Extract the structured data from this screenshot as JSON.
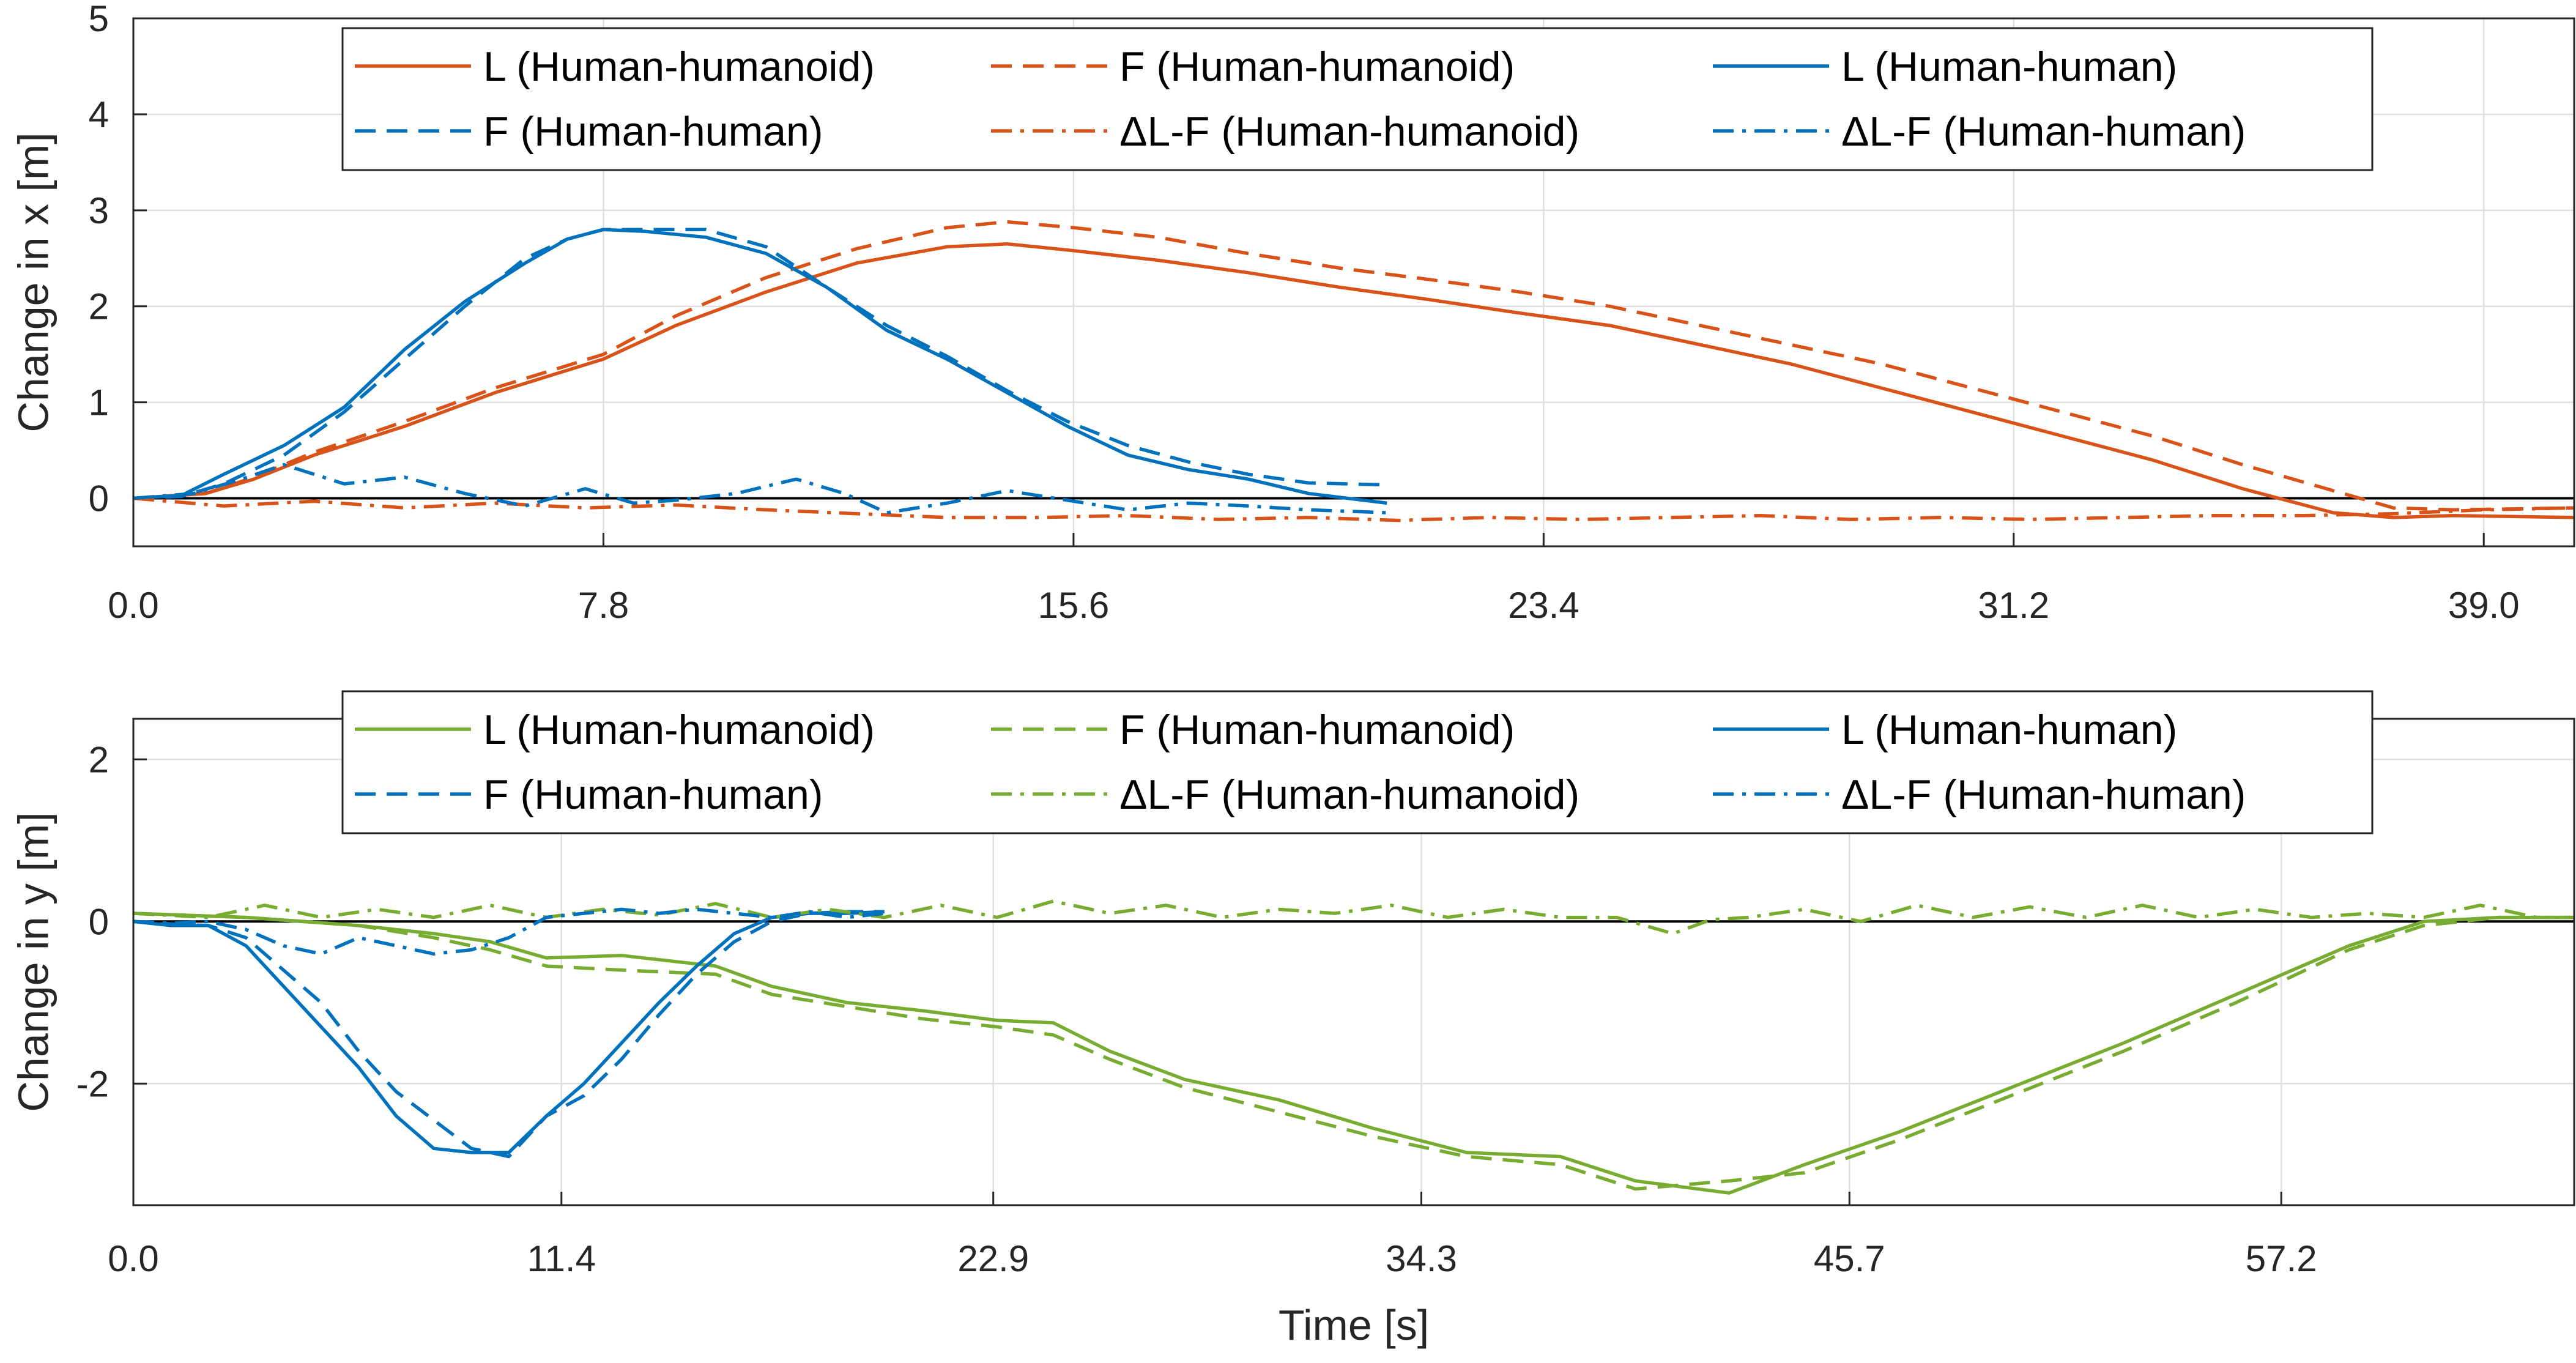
{
  "colors": {
    "humanoid_x": "#D95319",
    "humanoid_y": "#77AC30",
    "human": "#0072BD",
    "zero": "#000000",
    "grid": "#dfdfdf"
  },
  "xlabel": "Time [s]",
  "chart_data": [
    {
      "type": "line",
      "ylabel": "Change in x [m]",
      "xlim": [
        0,
        40.5
      ],
      "ylim": [
        -0.5,
        5
      ],
      "xticks": [
        "0.0",
        "7.8",
        "15.6",
        "23.4",
        "31.2",
        "39.0"
      ],
      "yticks": [
        "0",
        "1",
        "2",
        "3",
        "4",
        "5"
      ],
      "grid": true,
      "legend_position": "top-right",
      "legend_columns": 3,
      "reference_line_y": 0,
      "series": [
        {
          "name": "L (Human-humanoid)",
          "style": "solid",
          "color": "#D95319",
          "x": [
            0,
            1.2,
            2,
            3,
            4.5,
            6,
            7.8,
            9,
            10.5,
            12,
            13.5,
            14.5,
            15.6,
            17,
            18.5,
            20,
            21.5,
            23,
            24.5,
            26,
            27.5,
            29,
            30.5,
            32,
            33.5,
            35,
            36.5,
            37.5,
            38.5,
            40.5
          ],
          "y": [
            0,
            0.05,
            0.2,
            0.45,
            0.75,
            1.1,
            1.45,
            1.8,
            2.15,
            2.45,
            2.62,
            2.65,
            2.58,
            2.48,
            2.35,
            2.2,
            2.07,
            1.93,
            1.8,
            1.6,
            1.4,
            1.15,
            0.9,
            0.65,
            0.4,
            0.1,
            -0.15,
            -0.2,
            -0.18,
            -0.2
          ]
        },
        {
          "name": "F (Human-humanoid)",
          "style": "dashed",
          "color": "#D95319",
          "x": [
            0,
            1.2,
            2,
            3,
            4.5,
            6,
            7.8,
            9,
            10.5,
            12,
            13.5,
            14.5,
            15.6,
            17,
            18.5,
            20,
            21.5,
            23,
            24.5,
            26,
            27.5,
            29,
            30.5,
            32,
            33.5,
            35,
            36.5,
            37.5,
            38.5,
            40.5
          ],
          "y": [
            0,
            0.05,
            0.22,
            0.48,
            0.8,
            1.15,
            1.5,
            1.9,
            2.3,
            2.6,
            2.82,
            2.88,
            2.82,
            2.72,
            2.55,
            2.4,
            2.28,
            2.15,
            2.0,
            1.8,
            1.6,
            1.4,
            1.15,
            0.9,
            0.65,
            0.35,
            0.08,
            -0.1,
            -0.12,
            -0.1
          ]
        },
        {
          "name": "L (Human-human)",
          "style": "solid",
          "color": "#0072BD",
          "x": [
            0,
            0.8,
            1.5,
            2.5,
            3.5,
            4.5,
            5.5,
            6.5,
            7.2,
            7.8,
            8.5,
            9.5,
            10.5,
            11.5,
            12.5,
            13.5,
            14.5,
            15.5,
            16.5,
            17.5,
            18.5,
            19.5,
            20.8
          ],
          "y": [
            0,
            0.03,
            0.25,
            0.55,
            0.95,
            1.55,
            2.05,
            2.45,
            2.7,
            2.8,
            2.78,
            2.72,
            2.55,
            2.2,
            1.75,
            1.45,
            1.1,
            0.75,
            0.45,
            0.3,
            0.2,
            0.05,
            -0.05
          ]
        },
        {
          "name": "F (Human-human)",
          "style": "dashed",
          "color": "#0072BD",
          "x": [
            0,
            0.8,
            1.5,
            2.5,
            3.5,
            4.5,
            5.5,
            6.5,
            7.2,
            7.8,
            8.5,
            9.5,
            10.5,
            11.5,
            12.5,
            13.5,
            14.5,
            15.5,
            16.5,
            17.5,
            18.5,
            19.5,
            20.8
          ],
          "y": [
            0,
            0.02,
            0.15,
            0.45,
            0.9,
            1.45,
            2.0,
            2.5,
            2.7,
            2.8,
            2.8,
            2.8,
            2.62,
            2.2,
            1.8,
            1.48,
            1.12,
            0.8,
            0.55,
            0.38,
            0.25,
            0.16,
            0.14
          ]
        },
        {
          "name": "ΔL-F (Human-humanoid)",
          "style": "dashdot",
          "color": "#D95319",
          "x": [
            0,
            1.5,
            3,
            4.5,
            6,
            7.5,
            9,
            10.5,
            12,
            13.5,
            15,
            16.5,
            18,
            19.5,
            21,
            22.5,
            24,
            25.5,
            27,
            28.5,
            30,
            31.5,
            33,
            34.5,
            36,
            37.5,
            39,
            40.5
          ],
          "y": [
            0,
            -0.08,
            -0.03,
            -0.1,
            -0.05,
            -0.1,
            -0.07,
            -0.12,
            -0.16,
            -0.2,
            -0.2,
            -0.18,
            -0.22,
            -0.2,
            -0.23,
            -0.2,
            -0.22,
            -0.2,
            -0.18,
            -0.22,
            -0.2,
            -0.22,
            -0.2,
            -0.18,
            -0.18,
            -0.16,
            -0.12,
            -0.1
          ]
        },
        {
          "name": "ΔL-F (Human-human)",
          "style": "dashdot",
          "color": "#0072BD",
          "x": [
            0,
            1,
            1.8,
            2.5,
            3.5,
            4.5,
            5.5,
            6.5,
            7.5,
            8.3,
            9,
            10,
            11,
            11.8,
            12.5,
            13.5,
            14.5,
            15.5,
            16.5,
            17.5,
            18.5,
            19.5,
            20.8
          ],
          "y": [
            0,
            0.05,
            0.2,
            0.35,
            0.15,
            0.22,
            0.05,
            -0.08,
            0.1,
            -0.05,
            -0.02,
            0.05,
            0.2,
            0.05,
            -0.15,
            -0.05,
            0.08,
            -0.02,
            -0.12,
            -0.05,
            -0.08,
            -0.12,
            -0.15
          ]
        }
      ]
    },
    {
      "type": "line",
      "ylabel": "Change in y [m]",
      "xlabel": "Time [s]",
      "xlim": [
        0,
        65
      ],
      "ylim": [
        -3.5,
        2.5
      ],
      "xticks": [
        "0.0",
        "11.4",
        "22.9",
        "34.3",
        "45.7",
        "57.2"
      ],
      "yticks": [
        "-2",
        "0",
        "2"
      ],
      "grid": true,
      "legend_position": "top-right",
      "legend_columns": 3,
      "reference_line_y": 0,
      "series": [
        {
          "name": "L (Human-humanoid)",
          "style": "solid",
          "color": "#77AC30",
          "x": [
            0,
            3,
            6,
            8,
            9.5,
            11,
            13,
            15.5,
            17,
            19,
            21,
            23,
            24.5,
            26,
            28,
            30.5,
            33,
            35.5,
            38,
            40,
            42.5,
            44.5,
            47,
            50,
            53,
            56,
            59,
            61,
            63,
            65
          ],
          "y": [
            0.1,
            0.05,
            -0.05,
            -0.15,
            -0.25,
            -0.45,
            -0.42,
            -0.55,
            -0.8,
            -1.0,
            -1.1,
            -1.22,
            -1.25,
            -1.6,
            -1.95,
            -2.2,
            -2.55,
            -2.85,
            -2.9,
            -3.2,
            -3.35,
            -3.0,
            -2.6,
            -2.05,
            -1.5,
            -0.9,
            -0.3,
            0,
            0.05,
            0.05
          ]
        },
        {
          "name": "F (Human-humanoid)",
          "style": "dashed",
          "color": "#77AC30",
          "x": [
            0,
            3,
            6,
            8,
            9.5,
            11,
            13,
            15.5,
            17,
            19,
            21,
            23,
            24.5,
            26,
            28,
            30.5,
            33,
            35.5,
            38,
            40,
            42.5,
            44.5,
            47,
            50,
            53,
            56,
            59,
            61,
            63,
            65
          ],
          "y": [
            0.1,
            0.05,
            -0.05,
            -0.2,
            -0.35,
            -0.55,
            -0.6,
            -0.65,
            -0.9,
            -1.05,
            -1.2,
            -1.3,
            -1.4,
            -1.7,
            -2.05,
            -2.35,
            -2.65,
            -2.9,
            -3.0,
            -3.3,
            -3.2,
            -3.1,
            -2.7,
            -2.15,
            -1.6,
            -1.0,
            -0.35,
            -0.05,
            0.05,
            0.05
          ]
        },
        {
          "name": "L (Human-human)",
          "style": "solid",
          "color": "#0072BD",
          "x": [
            0,
            1,
            2,
            3,
            4,
            5,
            6,
            7,
            8,
            9,
            10,
            11,
            12,
            13,
            14,
            15,
            16,
            17,
            18,
            19,
            20
          ],
          "y": [
            0,
            -0.05,
            -0.05,
            -0.3,
            -0.8,
            -1.3,
            -1.8,
            -2.4,
            -2.8,
            -2.85,
            -2.85,
            -2.4,
            -2.0,
            -1.5,
            -1.0,
            -0.55,
            -0.15,
            0.05,
            0.1,
            0.1,
            0.12
          ]
        },
        {
          "name": "F (Human-human)",
          "style": "dashed",
          "color": "#0072BD",
          "x": [
            0,
            1,
            2,
            3,
            4,
            5,
            6,
            7,
            8,
            9,
            10,
            11,
            12,
            13,
            14,
            15,
            16,
            17,
            18,
            19,
            20
          ],
          "y": [
            0,
            -0.03,
            -0.05,
            -0.2,
            -0.6,
            -1.0,
            -1.6,
            -2.1,
            -2.45,
            -2.8,
            -2.9,
            -2.4,
            -2.15,
            -1.7,
            -1.15,
            -0.65,
            -0.25,
            0,
            0.1,
            0.12,
            0.12
          ]
        },
        {
          "name": "ΔL-F (Human-humanoid)",
          "style": "dashdot",
          "color": "#77AC30",
          "x": [
            0,
            2,
            3.5,
            5,
            6.5,
            8,
            9.5,
            11,
            12.5,
            14,
            15.5,
            17,
            18.5,
            20,
            21.5,
            23,
            24.5,
            26,
            27.5,
            29,
            30.5,
            32,
            33.5,
            35,
            36.5,
            38,
            39.5,
            41,
            42,
            43,
            44.5,
            46,
            47.5,
            49,
            50.5,
            52,
            53.5,
            55,
            56.5,
            58,
            59.5,
            61,
            62.5,
            64,
            65
          ],
          "y": [
            0.1,
            0.05,
            0.2,
            0.05,
            0.15,
            0.05,
            0.2,
            0.05,
            0.15,
            0.08,
            0.22,
            0.05,
            0.15,
            0.05,
            0.2,
            0.05,
            0.25,
            0.1,
            0.2,
            0.05,
            0.15,
            0.1,
            0.2,
            0.05,
            0.15,
            0.05,
            0.05,
            -0.15,
            0.02,
            0.05,
            0.15,
            0.0,
            0.2,
            0.05,
            0.18,
            0.05,
            0.2,
            0.05,
            0.15,
            0.05,
            0.1,
            0.05,
            0.2,
            0.05,
            0.05
          ]
        },
        {
          "name": "ΔL-F (Human-human)",
          "style": "dashdot",
          "color": "#0072BD",
          "x": [
            0,
            1,
            2,
            3,
            4,
            5,
            6,
            7,
            8,
            9,
            10,
            11,
            12,
            13,
            14,
            15,
            16,
            17,
            18,
            19,
            20
          ],
          "y": [
            0,
            -0.02,
            0,
            -0.1,
            -0.3,
            -0.4,
            -0.2,
            -0.3,
            -0.4,
            -0.35,
            -0.2,
            0.05,
            0.1,
            0.15,
            0.1,
            0.15,
            0.1,
            0.05,
            0.12,
            0.05,
            0.1
          ]
        }
      ]
    }
  ]
}
